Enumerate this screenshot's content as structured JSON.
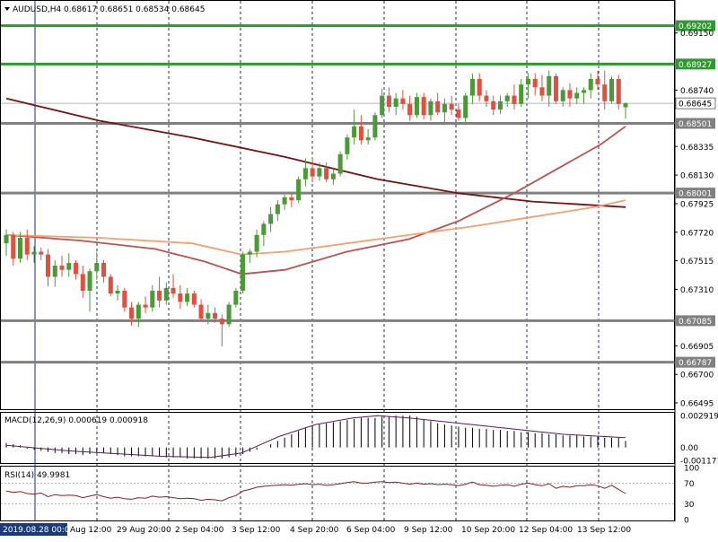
{
  "header": {
    "symbol": "AUDUSD,H4",
    "ohlc": "0.68617 0.68651 0.68534 0.68645"
  },
  "colors": {
    "bull": "#4a9a36",
    "bear": "#e05040",
    "support_line": "#808080",
    "resistance_line": "#2e9a2e",
    "ma_slow": "#7a1010",
    "ma_mid": "#c05050",
    "ma_fast": "#f4a070",
    "macd_hist": "#000000",
    "macd_signal": "#5a1a5a",
    "rsi_line": "#8a2020",
    "grid_dashed": "#1a2a8a"
  },
  "chart_data": [
    {
      "type": "candlestick",
      "pane": "price",
      "title": "AUDUSD,H4",
      "ohlc_last": [
        0.68617,
        0.68651,
        0.68534,
        0.68645
      ],
      "ylim": [
        0.6645,
        0.6938
      ],
      "y_ticks": [
        "0.69150",
        "0.68740",
        "0.68335",
        "0.68130",
        "0.67925",
        "0.67720",
        "0.67515",
        "0.67310",
        "0.66905",
        "0.66700",
        "0.66495"
      ],
      "x_ticks": [
        "2019.08.28 00:00",
        "Aug 12:00",
        "29 Aug 20:00",
        "2 Sep 04:00",
        "3 Sep 12:00",
        "4 Sep 20:00",
        "6 Sep 04:00",
        "9 Sep 12:00",
        "10 Sep 20:00",
        "12 Sep 04:00",
        "13 Sep 12:00"
      ],
      "current_price": "0.68645",
      "levels": [
        {
          "value": 0.69202,
          "label": "0.69202",
          "kind": "resistance"
        },
        {
          "value": 0.68927,
          "label": "0.68927",
          "kind": "resistance"
        },
        {
          "value": 0.68501,
          "label": "0.68501",
          "kind": "support"
        },
        {
          "value": 0.68001,
          "label": "0.68001",
          "kind": "support"
        },
        {
          "value": 0.67085,
          "label": "0.67085",
          "kind": "support"
        },
        {
          "value": 0.66787,
          "label": "0.66787",
          "kind": "support"
        }
      ],
      "candles": [
        [
          0.6764,
          0.6774,
          0.6755,
          0.677
        ],
        [
          0.677,
          0.6772,
          0.6748,
          0.6753
        ],
        [
          0.6753,
          0.6772,
          0.675,
          0.6768
        ],
        [
          0.6768,
          0.6774,
          0.6752,
          0.6756
        ],
        [
          0.6756,
          0.6762,
          0.675,
          0.6758
        ],
        [
          0.6758,
          0.6761,
          0.6752,
          0.6756
        ],
        [
          0.6756,
          0.676,
          0.6733,
          0.674
        ],
        [
          0.674,
          0.6752,
          0.6733,
          0.6748
        ],
        [
          0.6748,
          0.6755,
          0.674,
          0.6745
        ],
        [
          0.6745,
          0.6757,
          0.674,
          0.675
        ],
        [
          0.675,
          0.6752,
          0.6738,
          0.6742
        ],
        [
          0.6742,
          0.6748,
          0.6725,
          0.673
        ],
        [
          0.673,
          0.6746,
          0.6715,
          0.6744
        ],
        [
          0.6744,
          0.6758,
          0.6738,
          0.675
        ],
        [
          0.675,
          0.6752,
          0.6736,
          0.674
        ],
        [
          0.674,
          0.6742,
          0.6726,
          0.6728
        ],
        [
          0.6728,
          0.6734,
          0.6723,
          0.673
        ],
        [
          0.673,
          0.6732,
          0.6715,
          0.6718
        ],
        [
          0.6718,
          0.6722,
          0.6705,
          0.671
        ],
        [
          0.671,
          0.6722,
          0.6704,
          0.672
        ],
        [
          0.672,
          0.6726,
          0.6714,
          0.6718
        ],
        [
          0.6718,
          0.6734,
          0.6715,
          0.673
        ],
        [
          0.673,
          0.674,
          0.6718,
          0.6723
        ],
        [
          0.6723,
          0.6736,
          0.672,
          0.6732
        ],
        [
          0.6732,
          0.6742,
          0.6725,
          0.6728
        ],
        [
          0.6728,
          0.6734,
          0.6717,
          0.6722
        ],
        [
          0.6722,
          0.6732,
          0.6719,
          0.6728
        ],
        [
          0.6728,
          0.673,
          0.6718,
          0.672
        ],
        [
          0.672,
          0.6724,
          0.6708,
          0.671
        ],
        [
          0.671,
          0.672,
          0.6706,
          0.6714
        ],
        [
          0.6714,
          0.6718,
          0.6707,
          0.671
        ],
        [
          0.671,
          0.6713,
          0.669,
          0.6706
        ],
        [
          0.6706,
          0.6722,
          0.6704,
          0.672
        ],
        [
          0.672,
          0.6732,
          0.6718,
          0.673
        ],
        [
          0.673,
          0.6758,
          0.6728,
          0.6756
        ],
        [
          0.6756,
          0.676,
          0.675,
          0.6758
        ],
        [
          0.6758,
          0.6774,
          0.6754,
          0.677
        ],
        [
          0.677,
          0.678,
          0.6762,
          0.6778
        ],
        [
          0.6778,
          0.679,
          0.6772,
          0.6785
        ],
        [
          0.6785,
          0.6795,
          0.678,
          0.6792
        ],
        [
          0.6792,
          0.6799,
          0.6788,
          0.6797
        ],
        [
          0.6797,
          0.68,
          0.679,
          0.6795
        ],
        [
          0.6795,
          0.6812,
          0.6793,
          0.681
        ],
        [
          0.681,
          0.6825,
          0.6805,
          0.6818
        ],
        [
          0.6818,
          0.6826,
          0.6808,
          0.6812
        ],
        [
          0.6812,
          0.6822,
          0.6809,
          0.6818
        ],
        [
          0.6818,
          0.6822,
          0.6808,
          0.681
        ],
        [
          0.681,
          0.6818,
          0.6806,
          0.6814
        ],
        [
          0.6814,
          0.683,
          0.6812,
          0.6828
        ],
        [
          0.6828,
          0.6842,
          0.6824,
          0.684
        ],
        [
          0.684,
          0.686,
          0.6835,
          0.6848
        ],
        [
          0.6848,
          0.6856,
          0.6835,
          0.6838
        ],
        [
          0.6838,
          0.6846,
          0.6835,
          0.684
        ],
        [
          0.684,
          0.6858,
          0.6838,
          0.6856
        ],
        [
          0.6856,
          0.6875,
          0.6854,
          0.687
        ],
        [
          0.687,
          0.6876,
          0.6858,
          0.6862
        ],
        [
          0.6862,
          0.6872,
          0.6856,
          0.6868
        ],
        [
          0.6868,
          0.6874,
          0.686,
          0.6864
        ],
        [
          0.6864,
          0.687,
          0.6852,
          0.6856
        ],
        [
          0.6856,
          0.6872,
          0.6854,
          0.6869
        ],
        [
          0.6869,
          0.6872,
          0.6853,
          0.6856
        ],
        [
          0.6856,
          0.6868,
          0.6852,
          0.6866
        ],
        [
          0.6866,
          0.6872,
          0.6856,
          0.6858
        ],
        [
          0.6858,
          0.6868,
          0.685,
          0.6864
        ],
        [
          0.6864,
          0.687,
          0.6856,
          0.686
        ],
        [
          0.686,
          0.6864,
          0.6852,
          0.6854
        ],
        [
          0.6854,
          0.6872,
          0.6851,
          0.687
        ],
        [
          0.687,
          0.6886,
          0.6864,
          0.6882
        ],
        [
          0.6882,
          0.6886,
          0.6866,
          0.687
        ],
        [
          0.687,
          0.6874,
          0.6862,
          0.6866
        ],
        [
          0.6866,
          0.687,
          0.6856,
          0.686
        ],
        [
          0.686,
          0.687,
          0.6857,
          0.6866
        ],
        [
          0.6866,
          0.6872,
          0.6862,
          0.687
        ],
        [
          0.687,
          0.6878,
          0.686,
          0.6864
        ],
        [
          0.6864,
          0.6882,
          0.6862,
          0.6878
        ],
        [
          0.6878,
          0.6886,
          0.6868,
          0.6882
        ],
        [
          0.6882,
          0.6886,
          0.687,
          0.6876
        ],
        [
          0.6876,
          0.6885,
          0.6866,
          0.687
        ],
        [
          0.687,
          0.6888,
          0.6862,
          0.6884
        ],
        [
          0.6884,
          0.6886,
          0.6864,
          0.6866
        ],
        [
          0.6866,
          0.6876,
          0.6862,
          0.6874
        ],
        [
          0.6874,
          0.6879,
          0.6862,
          0.6868
        ],
        [
          0.6868,
          0.6876,
          0.6864,
          0.6872
        ],
        [
          0.6872,
          0.6876,
          0.6864,
          0.6874
        ],
        [
          0.6874,
          0.6886,
          0.6868,
          0.6882
        ],
        [
          0.6882,
          0.6888,
          0.6874,
          0.6878
        ],
        [
          0.6878,
          0.6888,
          0.686,
          0.6866
        ],
        [
          0.6866,
          0.6884,
          0.6864,
          0.6882
        ],
        [
          0.6882,
          0.6885,
          0.686,
          0.6864
        ],
        [
          0.68617,
          0.68651,
          0.68534,
          0.68645
        ]
      ],
      "ma_slow": [
        [
          0,
          0.6868
        ],
        [
          15,
          0.6852
        ],
        [
          30,
          0.684
        ],
        [
          45,
          0.6826
        ],
        [
          60,
          0.681
        ],
        [
          73,
          0.68
        ],
        [
          85,
          0.6794
        ],
        [
          100,
          0.679
        ]
      ],
      "ma_mid": [
        [
          0,
          0.677
        ],
        [
          12,
          0.6766
        ],
        [
          24,
          0.676
        ],
        [
          32,
          0.6751
        ],
        [
          38,
          0.6742
        ],
        [
          45,
          0.6745
        ],
        [
          55,
          0.6758
        ],
        [
          65,
          0.6767
        ],
        [
          73,
          0.678
        ],
        [
          82,
          0.68
        ],
        [
          90,
          0.682
        ],
        [
          96,
          0.6835
        ],
        [
          100,
          0.6848
        ]
      ],
      "ma_fast": [
        [
          0,
          0.677
        ],
        [
          15,
          0.6768
        ],
        [
          30,
          0.6764
        ],
        [
          38,
          0.6756
        ],
        [
          45,
          0.6758
        ],
        [
          55,
          0.6764
        ],
        [
          65,
          0.677
        ],
        [
          75,
          0.6776
        ],
        [
          85,
          0.6783
        ],
        [
          95,
          0.679
        ],
        [
          100,
          0.6795
        ]
      ]
    },
    {
      "type": "bar",
      "pane": "macd",
      "title": "MACD(12,26,9) 0.000619 0.000918",
      "y_ticks": [
        "0.002919",
        "0.00",
        "-0.001171"
      ],
      "ylim": [
        -0.00125,
        0.003
      ],
      "histogram": [
        0.0004,
        0.0003,
        0.0002,
        -0.0001,
        -0.0002,
        -0.0003,
        -0.0004,
        -0.0005,
        -0.0005,
        -0.0006,
        -0.0006,
        -0.0007,
        -0.0006,
        -0.0005,
        -0.0005,
        -0.0006,
        -0.0007,
        -0.0008,
        -0.0008,
        -0.0008,
        -0.0008,
        -0.0008,
        -0.0008,
        -0.0009,
        -0.0009,
        -0.0009,
        -0.001,
        -0.001,
        -0.001,
        -0.001,
        -0.001,
        -0.001,
        -0.0009,
        -0.0008,
        -0.0006,
        -0.0004,
        -0.0002,
        0.0,
        0.0003,
        0.0006,
        0.0009,
        0.0012,
        0.0015,
        0.0018,
        0.002,
        0.0021,
        0.0022,
        0.0023,
        0.0024,
        0.0025,
        0.0026,
        0.0027,
        0.0027,
        0.0027,
        0.0028,
        0.0028,
        0.0029,
        0.0029,
        0.0029,
        0.0028,
        0.0026,
        0.0024,
        0.0022,
        0.0021,
        0.002,
        0.0019,
        0.0018,
        0.0018,
        0.0017,
        0.0017,
        0.0016,
        0.0016,
        0.0015,
        0.0015,
        0.0014,
        0.0014,
        0.0013,
        0.0013,
        0.0012,
        0.0012,
        0.0011,
        0.0011,
        0.0011,
        0.001,
        0.001,
        0.001,
        0.0009,
        0.0009,
        0.0009,
        0.0006
      ],
      "signal": [
        [
          0,
          0.0002
        ],
        [
          10,
          -0.0003
        ],
        [
          25,
          -0.0008
        ],
        [
          33,
          -0.0009
        ],
        [
          38,
          -0.0005
        ],
        [
          44,
          0.001
        ],
        [
          50,
          0.0021
        ],
        [
          56,
          0.0027
        ],
        [
          60,
          0.0029
        ],
        [
          65,
          0.0027
        ],
        [
          75,
          0.0021
        ],
        [
          85,
          0.0015
        ],
        [
          90,
          0.0012
        ],
        [
          100,
          0.0009
        ]
      ]
    },
    {
      "type": "line",
      "pane": "rsi",
      "title": "RSI(14) 49.9981",
      "y_ticks": [
        "100",
        "70",
        "30",
        "0"
      ],
      "ylim": [
        0,
        100
      ],
      "levels": [
        70,
        30
      ],
      "values": [
        55,
        52,
        54,
        50,
        49,
        51,
        44,
        48,
        46,
        47,
        46,
        42,
        45,
        48,
        44,
        41,
        43,
        40,
        39,
        42,
        41,
        45,
        43,
        44,
        42,
        40,
        41,
        40,
        37,
        39,
        38,
        36,
        42,
        46,
        55,
        58,
        62,
        64,
        65,
        66,
        67,
        66,
        68,
        69,
        67,
        68,
        66,
        67,
        69,
        71,
        73,
        70,
        70,
        72,
        73,
        71,
        72,
        70,
        68,
        70,
        68,
        69,
        67,
        68,
        67,
        65,
        68,
        72,
        67,
        66,
        64,
        66,
        67,
        64,
        68,
        70,
        67,
        65,
        69,
        60,
        64,
        62,
        65,
        65,
        67,
        65,
        60,
        66,
        58,
        50
      ]
    }
  ]
}
